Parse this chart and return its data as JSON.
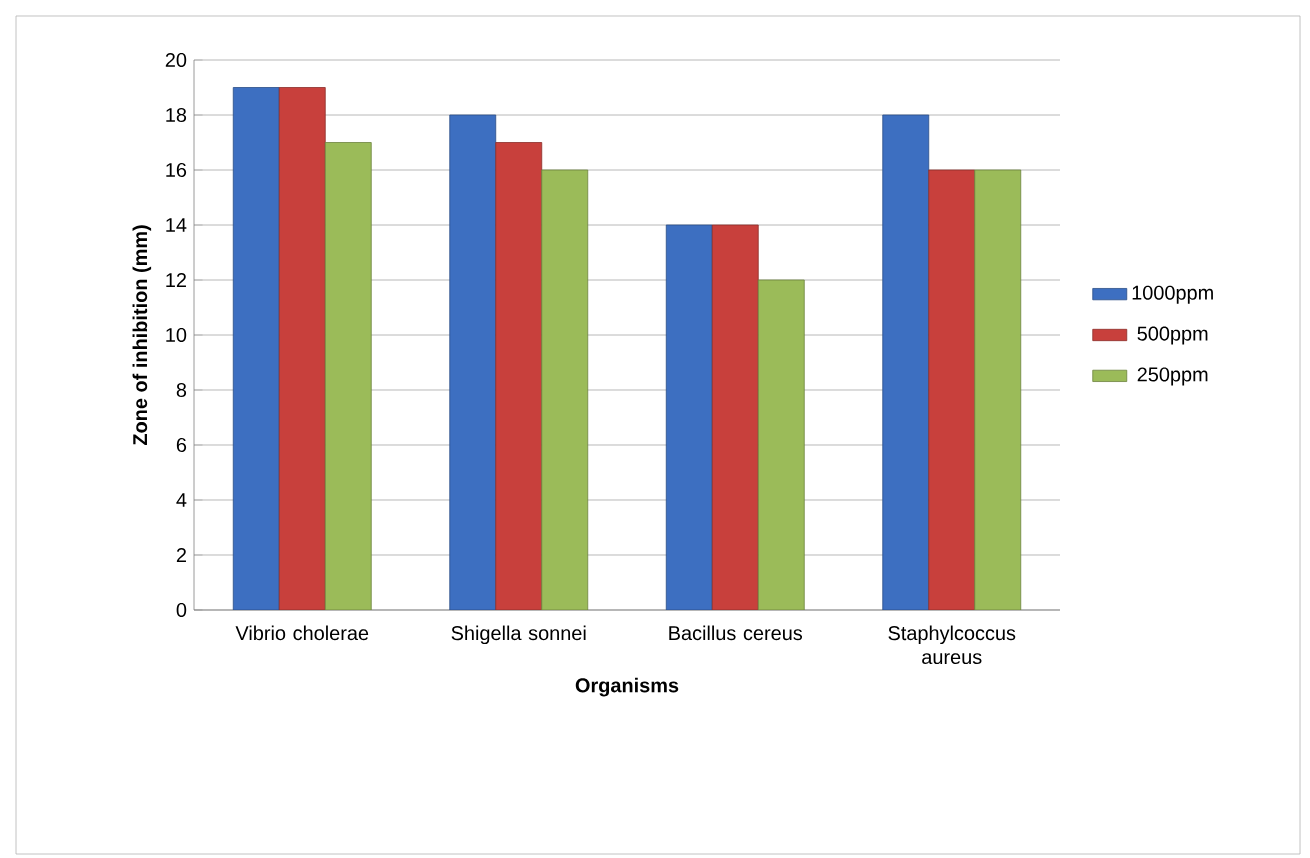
{
  "chart_data": {
    "type": "bar",
    "xlabel": "Organisms",
    "ylabel": "Zone of inhibition (mm)",
    "categories": [
      "Vibrio cholerae",
      "Shigella sonnei",
      "Bacillus cereus",
      "Staphylcoccus aureus"
    ],
    "series": [
      {
        "name": "1000ppm",
        "color": "#3d6fc1",
        "values": [
          19,
          18,
          14,
          18
        ]
      },
      {
        "name": "500ppm",
        "color": "#c8403c",
        "values": [
          19,
          17,
          14,
          16
        ]
      },
      {
        "name": "250ppm",
        "color": "#9bbb59",
        "values": [
          17,
          16,
          12,
          16
        ]
      }
    ],
    "ylim": [
      0,
      20
    ],
    "yticks": [
      0,
      2,
      4,
      6,
      8,
      10,
      12,
      14,
      16,
      18,
      20
    ],
    "grid": "y",
    "legend": "right"
  }
}
